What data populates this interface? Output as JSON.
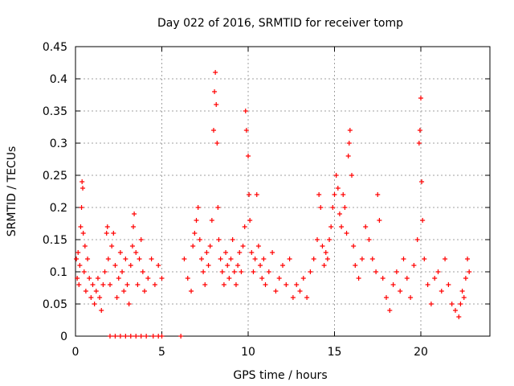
{
  "chart_data": {
    "type": "scatter",
    "title": "Day 022 of 2016, SRMTID for receiver tomp",
    "xlabel": "GPS time / hours",
    "ylabel": "SRMTID / TECUs",
    "xlim": [
      0,
      24
    ],
    "ylim": [
      0,
      0.45
    ],
    "xticks": [
      0,
      5,
      10,
      15,
      20
    ],
    "xtick_labels": [
      "0",
      "5",
      "10",
      "15",
      "20"
    ],
    "yticks": [
      0,
      0.05,
      0.1,
      0.15,
      0.2,
      0.25,
      0.3,
      0.35,
      0.4,
      0.45
    ],
    "ytick_labels": [
      "0",
      "0.05",
      "0.1",
      "0.15",
      "0.2",
      "0.25",
      "0.3",
      "0.35",
      "0.4",
      "0.45"
    ],
    "grid": true,
    "marker": "+",
    "color": "#ff0000",
    "series": [
      {
        "name": "SRMTID",
        "points": [
          [
            0.05,
            0.12
          ],
          [
            0.1,
            0.09
          ],
          [
            0.15,
            0.13
          ],
          [
            0.2,
            0.08
          ],
          [
            0.25,
            0.11
          ],
          [
            0.3,
            0.17
          ],
          [
            0.35,
            0.2
          ],
          [
            0.38,
            0.24
          ],
          [
            0.42,
            0.23
          ],
          [
            0.45,
            0.16
          ],
          [
            0.5,
            0.1
          ],
          [
            0.55,
            0.14
          ],
          [
            0.6,
            0.07
          ],
          [
            0.7,
            0.12
          ],
          [
            0.8,
            0.09
          ],
          [
            0.9,
            0.06
          ],
          [
            1.0,
            0.08
          ],
          [
            1.1,
            0.05
          ],
          [
            1.2,
            0.07
          ],
          [
            1.3,
            0.09
          ],
          [
            1.4,
            0.06
          ],
          [
            1.5,
            0.04
          ],
          [
            1.6,
            0.08
          ],
          [
            1.7,
            0.1
          ],
          [
            1.8,
            0.16
          ],
          [
            1.85,
            0.17
          ],
          [
            1.9,
            0.12
          ],
          [
            2.0,
            0.08
          ],
          [
            2.1,
            0.14
          ],
          [
            2.2,
            0.16
          ],
          [
            2.3,
            0.11
          ],
          [
            2.4,
            0.06
          ],
          [
            2.5,
            0.09
          ],
          [
            2.6,
            0.13
          ],
          [
            2.7,
            0.1
          ],
          [
            2.8,
            0.07
          ],
          [
            2.9,
            0.12
          ],
          [
            3.0,
            0.08
          ],
          [
            3.1,
            0.05
          ],
          [
            3.2,
            0.11
          ],
          [
            3.3,
            0.14
          ],
          [
            3.35,
            0.17
          ],
          [
            3.4,
            0.19
          ],
          [
            3.5,
            0.13
          ],
          [
            3.6,
            0.08
          ],
          [
            3.7,
            0.12
          ],
          [
            3.8,
            0.15
          ],
          [
            3.9,
            0.1
          ],
          [
            4.0,
            0.07
          ],
          [
            4.2,
            0.09
          ],
          [
            4.4,
            0.12
          ],
          [
            4.6,
            0.08
          ],
          [
            4.8,
            0.11
          ],
          [
            5.0,
            0.09
          ],
          [
            2.0,
            0.0
          ],
          [
            2.3,
            0.0
          ],
          [
            2.6,
            0.0
          ],
          [
            2.9,
            0.0
          ],
          [
            3.2,
            0.0
          ],
          [
            3.5,
            0.0
          ],
          [
            3.8,
            0.0
          ],
          [
            4.1,
            0.0
          ],
          [
            4.5,
            0.0
          ],
          [
            4.8,
            0.0
          ],
          [
            5.0,
            0.0
          ],
          [
            6.1,
            0.0
          ],
          [
            6.3,
            0.12
          ],
          [
            6.5,
            0.09
          ],
          [
            6.7,
            0.07
          ],
          [
            6.8,
            0.14
          ],
          [
            6.9,
            0.16
          ],
          [
            7.0,
            0.18
          ],
          [
            7.1,
            0.2
          ],
          [
            7.2,
            0.15
          ],
          [
            7.3,
            0.12
          ],
          [
            7.4,
            0.1
          ],
          [
            7.5,
            0.08
          ],
          [
            7.6,
            0.13
          ],
          [
            7.7,
            0.11
          ],
          [
            7.8,
            0.14
          ],
          [
            7.9,
            0.18
          ],
          [
            8.0,
            0.32
          ],
          [
            8.05,
            0.38
          ],
          [
            8.1,
            0.41
          ],
          [
            8.15,
            0.36
          ],
          [
            8.2,
            0.3
          ],
          [
            8.25,
            0.2
          ],
          [
            8.3,
            0.15
          ],
          [
            8.4,
            0.12
          ],
          [
            8.5,
            0.1
          ],
          [
            8.6,
            0.08
          ],
          [
            8.7,
            0.13
          ],
          [
            8.8,
            0.11
          ],
          [
            8.9,
            0.09
          ],
          [
            9.0,
            0.12
          ],
          [
            9.1,
            0.15
          ],
          [
            9.2,
            0.1
          ],
          [
            9.3,
            0.08
          ],
          [
            9.4,
            0.11
          ],
          [
            9.5,
            0.13
          ],
          [
            9.6,
            0.1
          ],
          [
            9.7,
            0.14
          ],
          [
            9.8,
            0.17
          ],
          [
            9.85,
            0.35
          ],
          [
            9.9,
            0.32
          ],
          [
            10.0,
            0.28
          ],
          [
            10.05,
            0.22
          ],
          [
            10.1,
            0.18
          ],
          [
            10.2,
            0.13
          ],
          [
            10.3,
            0.1
          ],
          [
            10.4,
            0.12
          ],
          [
            10.5,
            0.22
          ],
          [
            10.6,
            0.14
          ],
          [
            10.7,
            0.11
          ],
          [
            10.8,
            0.09
          ],
          [
            10.9,
            0.12
          ],
          [
            11.0,
            0.08
          ],
          [
            11.2,
            0.1
          ],
          [
            11.4,
            0.13
          ],
          [
            11.6,
            0.07
          ],
          [
            11.8,
            0.09
          ],
          [
            12.0,
            0.11
          ],
          [
            12.2,
            0.08
          ],
          [
            12.4,
            0.12
          ],
          [
            12.6,
            0.06
          ],
          [
            12.8,
            0.08
          ],
          [
            13.0,
            0.07
          ],
          [
            13.2,
            0.09
          ],
          [
            13.4,
            0.06
          ],
          [
            13.6,
            0.1
          ],
          [
            13.8,
            0.12
          ],
          [
            14.0,
            0.15
          ],
          [
            14.1,
            0.22
          ],
          [
            14.2,
            0.2
          ],
          [
            14.3,
            0.14
          ],
          [
            14.4,
            0.11
          ],
          [
            14.5,
            0.13
          ],
          [
            14.6,
            0.12
          ],
          [
            14.7,
            0.15
          ],
          [
            14.8,
            0.17
          ],
          [
            14.9,
            0.2
          ],
          [
            15.0,
            0.22
          ],
          [
            15.1,
            0.25
          ],
          [
            15.2,
            0.23
          ],
          [
            15.3,
            0.19
          ],
          [
            15.4,
            0.17
          ],
          [
            15.5,
            0.22
          ],
          [
            15.6,
            0.2
          ],
          [
            15.7,
            0.16
          ],
          [
            15.8,
            0.28
          ],
          [
            15.85,
            0.3
          ],
          [
            15.9,
            0.32
          ],
          [
            16.0,
            0.25
          ],
          [
            16.1,
            0.14
          ],
          [
            16.2,
            0.11
          ],
          [
            16.4,
            0.09
          ],
          [
            16.6,
            0.12
          ],
          [
            16.8,
            0.17
          ],
          [
            17.0,
            0.15
          ],
          [
            17.2,
            0.12
          ],
          [
            17.4,
            0.1
          ],
          [
            17.5,
            0.22
          ],
          [
            17.6,
            0.18
          ],
          [
            17.8,
            0.09
          ],
          [
            18.0,
            0.06
          ],
          [
            18.2,
            0.04
          ],
          [
            18.4,
            0.08
          ],
          [
            18.6,
            0.1
          ],
          [
            18.8,
            0.07
          ],
          [
            19.0,
            0.12
          ],
          [
            19.2,
            0.09
          ],
          [
            19.4,
            0.06
          ],
          [
            19.6,
            0.11
          ],
          [
            19.8,
            0.15
          ],
          [
            19.9,
            0.3
          ],
          [
            19.95,
            0.32
          ],
          [
            20.0,
            0.37
          ],
          [
            20.05,
            0.24
          ],
          [
            20.1,
            0.18
          ],
          [
            20.2,
            0.12
          ],
          [
            20.4,
            0.08
          ],
          [
            20.6,
            0.05
          ],
          [
            20.8,
            0.09
          ],
          [
            21.0,
            0.1
          ],
          [
            21.2,
            0.07
          ],
          [
            21.4,
            0.12
          ],
          [
            21.6,
            0.08
          ],
          [
            21.8,
            0.05
          ],
          [
            22.0,
            0.04
          ],
          [
            22.2,
            0.03
          ],
          [
            22.3,
            0.05
          ],
          [
            22.4,
            0.07
          ],
          [
            22.5,
            0.06
          ],
          [
            22.6,
            0.09
          ],
          [
            22.7,
            0.12
          ],
          [
            22.8,
            0.1
          ]
        ]
      }
    ]
  }
}
